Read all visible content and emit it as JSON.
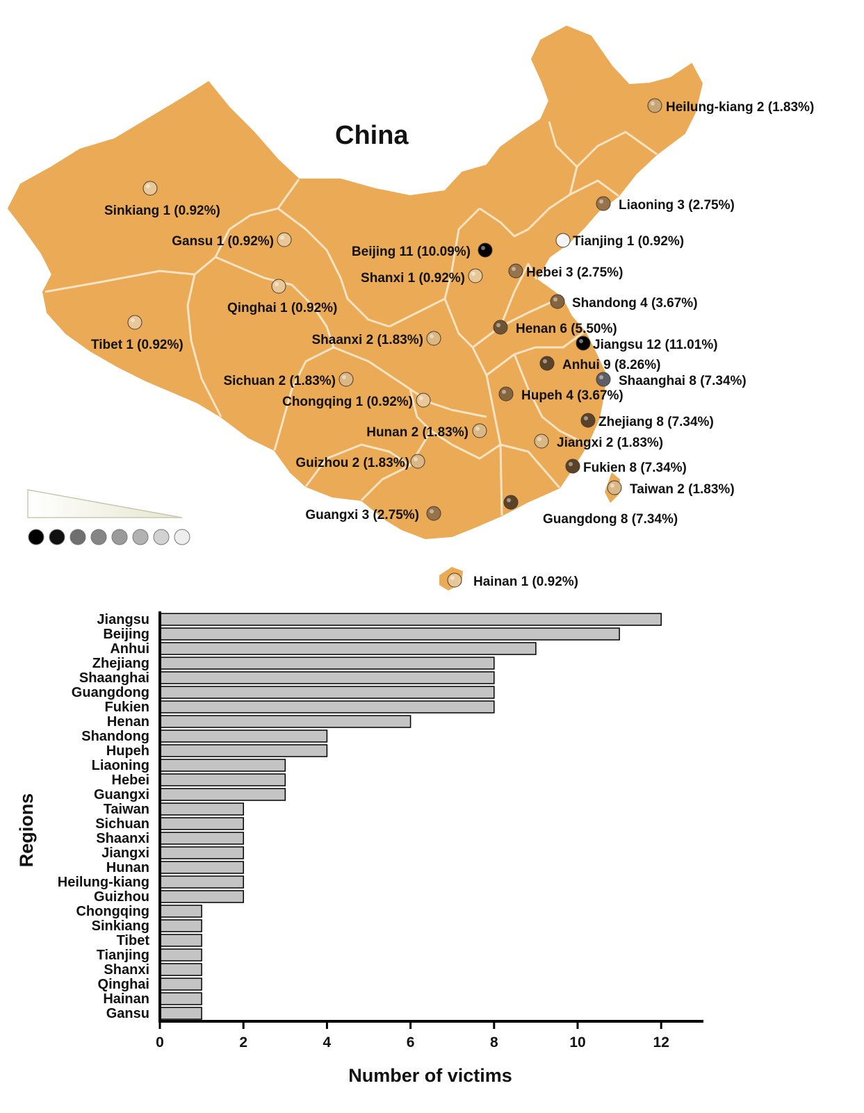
{
  "map": {
    "title": "China",
    "colors": {
      "land": "#EBAA55",
      "border": "#F8E4C4"
    },
    "legend": {
      "dot_colors": [
        "#000000",
        "#111111",
        "#6f6f6f",
        "#858585",
        "#9a9a9a",
        "#b2b2b2",
        "#d2d2d2",
        "#eeeeee"
      ]
    },
    "markers": [
      {
        "label": "Heilung-kiang 2 (1.83%)",
        "color": "#C8A574"
      },
      {
        "label": "Liaoning 3 (2.75%)",
        "color": "#96734A"
      },
      {
        "label": "Tianjing 1 (0.92%)",
        "color": "#F4F4F4"
      },
      {
        "label": "Beijing 11 (10.09%)",
        "color": "#000000"
      },
      {
        "label": "Hebei 3 (2.75%)",
        "color": "#96734A"
      },
      {
        "label": "Shandong 4 (3.67%)",
        "color": "#86643F"
      },
      {
        "label": "Henan 6 (5.50%)",
        "color": "#6E5434"
      },
      {
        "label": "Jiangsu 12 (11.01%)",
        "color": "#000000"
      },
      {
        "label": "Anhui  9 (8.26%)",
        "color": "#5A4329"
      },
      {
        "label": "Shaanghai 8 (7.34%)",
        "color": "#5E5E66"
      },
      {
        "label": "Hupeh 4 (3.67%)",
        "color": "#86643F"
      },
      {
        "label": "Zhejiang 8 (7.34%)",
        "color": "#5A4329"
      },
      {
        "label": "Jiangxi  2 (1.83%)",
        "color": "#D9B886"
      },
      {
        "label": "Fukien 8 (7.34%)",
        "color": "#5A4329"
      },
      {
        "label": "Taiwan 2 (1.83%)",
        "color": "#D9B886"
      },
      {
        "label": "Guangdong 8 (7.34%)",
        "color": "#5A4329"
      },
      {
        "label": "Hainan 1 (0.92%)",
        "color": "#E8C898"
      },
      {
        "label": "Guangxi 3 (2.75%)",
        "color": "#96734A"
      },
      {
        "label": "Guizhou 2 (1.83%)",
        "color": "#D9B886"
      },
      {
        "label": "Hunan  2 (1.83%)",
        "color": "#D9B886"
      },
      {
        "label": "Chongqing 1 (0.92%)",
        "color": "#E8C898"
      },
      {
        "label": "Sichuan 2 (1.83%)",
        "color": "#D9B886"
      },
      {
        "label": "Shaanxi  2 (1.83%)",
        "color": "#D9B886"
      },
      {
        "label": "Shanxi 1 (0.92%)",
        "color": "#E8C898"
      },
      {
        "label": "Qinghai 1 (0.92%)",
        "color": "#E8C898"
      },
      {
        "label": "Tibet 1 (0.92%)",
        "color": "#E8C898"
      },
      {
        "label": "Gansu 1 (0.92%)",
        "color": "#E8C898"
      },
      {
        "label": "Sinkiang 1 (0.92%)",
        "color": "#E8C898"
      }
    ]
  },
  "chart_data": {
    "type": "bar",
    "orientation": "horizontal",
    "categories": [
      "Jiangsu",
      "Beijing",
      "Anhui",
      "Zhejiang",
      "Shaanghai",
      "Guangdong",
      "Fukien",
      "Henan",
      "Shandong",
      "Hupeh",
      "Liaoning",
      "Hebei",
      "Guangxi",
      "Taiwan",
      "Sichuan",
      "Shaanxi",
      "Jiangxi",
      "Hunan",
      "Heilung-kiang",
      "Guizhou",
      "Chongqing",
      "Sinkiang",
      "Tibet",
      "Tianjing",
      "Shanxi",
      "Qinghai",
      "Hainan",
      "Gansu"
    ],
    "values": [
      12,
      11,
      9,
      8,
      8,
      8,
      8,
      6,
      4,
      4,
      3,
      3,
      3,
      2,
      2,
      2,
      2,
      2,
      2,
      2,
      1,
      1,
      1,
      1,
      1,
      1,
      1,
      1
    ],
    "title": "",
    "xlabel": "Number of victims",
    "ylabel": "Regions",
    "xlim": [
      0,
      13
    ],
    "xticks": [
      0,
      2,
      4,
      6,
      8,
      10,
      12
    ],
    "grid": false,
    "bar_color": "#C4C4C4"
  }
}
